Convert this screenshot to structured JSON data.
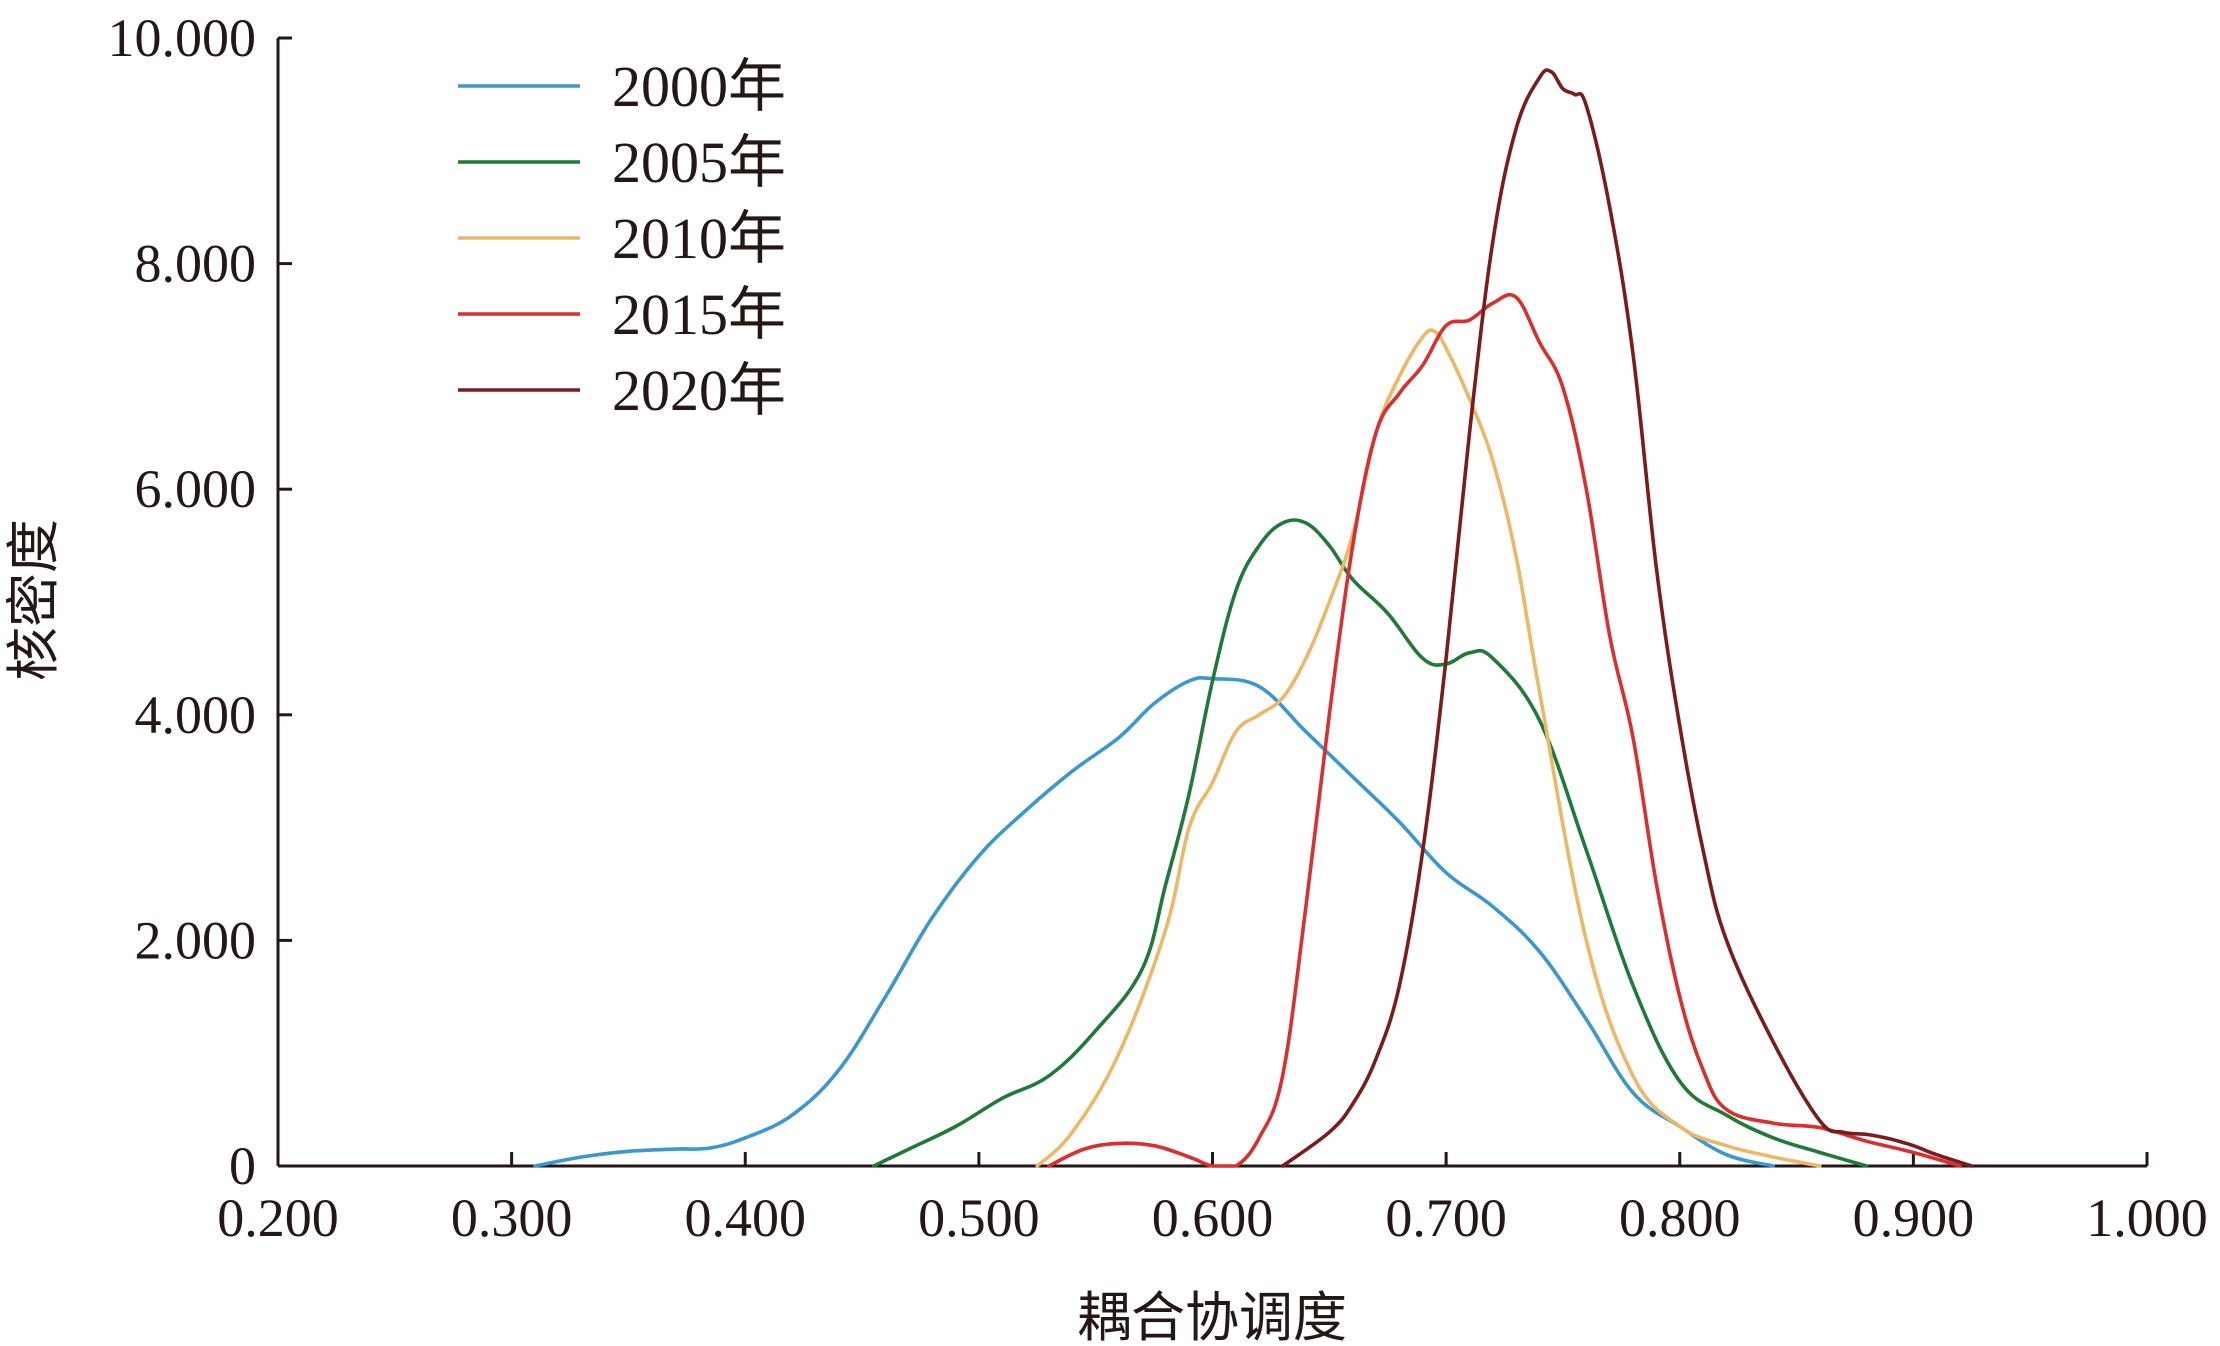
{
  "chart_data": {
    "type": "line",
    "title": "",
    "xlabel": "耦合协调度",
    "ylabel": "核密度",
    "xlim": [
      0.2,
      1.0
    ],
    "ylim": [
      0,
      10
    ],
    "xticks": [
      "0.200",
      "0.300",
      "0.400",
      "0.500",
      "0.600",
      "0.700",
      "0.800",
      "0.900",
      "1.000"
    ],
    "yticks": [
      "0",
      "2.000",
      "4.000",
      "6.000",
      "8.000",
      "10.000"
    ],
    "grid": false,
    "legend_position": "top-left",
    "series": [
      {
        "name": "2000年",
        "color": "#3a97cf",
        "x": [
          0.31,
          0.33,
          0.35,
          0.37,
          0.385,
          0.4,
          0.42,
          0.44,
          0.46,
          0.48,
          0.5,
          0.52,
          0.54,
          0.56,
          0.575,
          0.59,
          0.6,
          0.62,
          0.64,
          0.66,
          0.68,
          0.7,
          0.72,
          0.74,
          0.76,
          0.78,
          0.8,
          0.82,
          0.84
        ],
        "y": [
          0.0,
          0.08,
          0.13,
          0.15,
          0.16,
          0.25,
          0.45,
          0.85,
          1.5,
          2.2,
          2.75,
          3.15,
          3.5,
          3.8,
          4.1,
          4.3,
          4.32,
          4.25,
          3.85,
          3.45,
          3.05,
          2.6,
          2.3,
          1.9,
          1.3,
          0.65,
          0.35,
          0.1,
          0.0
        ]
      },
      {
        "name": "2005年",
        "color": "#1f7a3a",
        "x": [
          0.455,
          0.47,
          0.49,
          0.51,
          0.53,
          0.55,
          0.57,
          0.58,
          0.59,
          0.6,
          0.61,
          0.62,
          0.63,
          0.64,
          0.65,
          0.66,
          0.675,
          0.69,
          0.7,
          0.71,
          0.72,
          0.74,
          0.76,
          0.78,
          0.8,
          0.82,
          0.84,
          0.86,
          0.88
        ],
        "y": [
          0.0,
          0.15,
          0.35,
          0.6,
          0.8,
          1.2,
          1.75,
          2.5,
          3.3,
          4.3,
          5.1,
          5.5,
          5.7,
          5.7,
          5.5,
          5.2,
          4.9,
          4.5,
          4.45,
          4.55,
          4.5,
          3.95,
          2.8,
          1.6,
          0.75,
          0.45,
          0.25,
          0.12,
          0.0
        ]
      },
      {
        "name": "2010年",
        "color": "#ecb866",
        "x": [
          0.525,
          0.54,
          0.56,
          0.58,
          0.59,
          0.6,
          0.61,
          0.62,
          0.63,
          0.64,
          0.65,
          0.66,
          0.67,
          0.68,
          0.69,
          0.695,
          0.7,
          0.71,
          0.72,
          0.73,
          0.74,
          0.76,
          0.78,
          0.8,
          0.82,
          0.84,
          0.86
        ],
        "y": [
          0.0,
          0.3,
          1.0,
          2.1,
          3.0,
          3.4,
          3.85,
          4.0,
          4.15,
          4.5,
          5.0,
          5.6,
          6.5,
          7.0,
          7.35,
          7.4,
          7.25,
          6.8,
          6.25,
          5.4,
          4.2,
          2.0,
          0.8,
          0.35,
          0.18,
          0.08,
          0.0
        ]
      },
      {
        "name": "2015年",
        "color": "#d92f2f",
        "x": [
          0.53,
          0.545,
          0.56,
          0.575,
          0.59,
          0.6,
          0.61,
          0.62,
          0.63,
          0.64,
          0.65,
          0.66,
          0.67,
          0.68,
          0.69,
          0.7,
          0.71,
          0.72,
          0.73,
          0.74,
          0.75,
          0.76,
          0.77,
          0.78,
          0.79,
          0.8,
          0.81,
          0.82,
          0.84,
          0.86,
          0.88,
          0.9,
          0.92
        ],
        "y": [
          0.0,
          0.15,
          0.2,
          0.18,
          0.08,
          0.0,
          0.0,
          0.25,
          0.8,
          2.3,
          4.0,
          5.5,
          6.5,
          6.85,
          7.1,
          7.45,
          7.5,
          7.65,
          7.7,
          7.3,
          6.9,
          6.0,
          4.7,
          3.8,
          2.5,
          1.5,
          0.85,
          0.5,
          0.38,
          0.34,
          0.22,
          0.12,
          0.0
        ]
      },
      {
        "name": "2020年",
        "color": "#7a1c1c",
        "x": [
          0.63,
          0.65,
          0.66,
          0.67,
          0.68,
          0.69,
          0.7,
          0.71,
          0.72,
          0.73,
          0.74,
          0.745,
          0.75,
          0.755,
          0.76,
          0.77,
          0.78,
          0.79,
          0.8,
          0.81,
          0.82,
          0.84,
          0.86,
          0.87,
          0.88,
          0.89,
          0.9,
          0.91,
          0.925
        ],
        "y": [
          0.0,
          0.3,
          0.55,
          0.95,
          1.6,
          2.8,
          4.5,
          6.5,
          8.2,
          9.2,
          9.65,
          9.7,
          9.55,
          9.5,
          9.4,
          8.5,
          7.2,
          5.3,
          3.9,
          2.8,
          2.0,
          1.1,
          0.4,
          0.3,
          0.28,
          0.24,
          0.18,
          0.1,
          0.0
        ]
      }
    ]
  }
}
